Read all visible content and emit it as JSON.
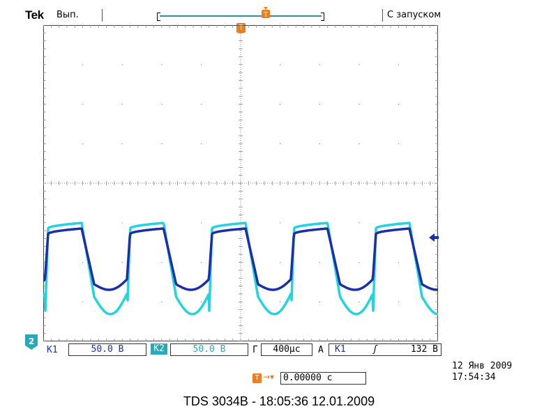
{
  "header": {
    "brand": "Tek",
    "run_state": "Вып.",
    "trigger_status": "С запуском"
  },
  "trigger_marker": {
    "symbol": "T"
  },
  "ground_marker": {
    "label": "2"
  },
  "readout": {
    "ch1_label": "K1",
    "ch1_scale": "50.0 В",
    "ch2_label": "K2",
    "ch2_scale": "50.0 В",
    "timebase_label": "Г",
    "timebase": "400μс",
    "acq_label": "A",
    "trigger_source": "K1",
    "trigger_slope": "ʃ",
    "trigger_level": "132 В"
  },
  "trigger_position": {
    "icon": "T",
    "arrow": "→▾",
    "value": "0.00000 с"
  },
  "datetime": {
    "date": "12 Янв  2009",
    "time": "17:54:34"
  },
  "caption": "TDS 3034B - 18:05:36   12.01.2009",
  "colors": {
    "ch1": "#1a2fa8",
    "ch2": "#22d4e0",
    "trigger": "#f07c1a",
    "grid": "#8a8a8a"
  }
}
